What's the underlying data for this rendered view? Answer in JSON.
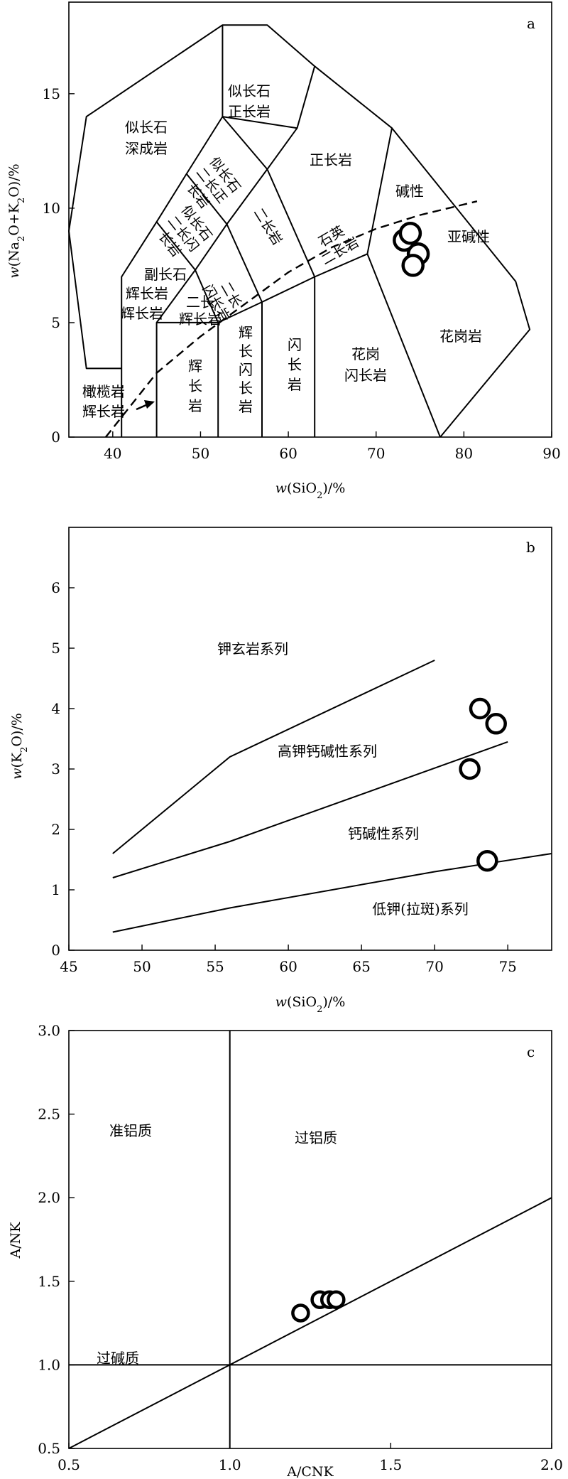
{
  "chart_data": [
    {
      "type": "scatter",
      "panel_label": "a",
      "xlabel": "w(SiO2)/%",
      "ylabel": "w(Na2O+K2O)/%",
      "xlim": [
        35,
        90
      ],
      "ylim": [
        0,
        19
      ],
      "x_ticks": [
        40,
        50,
        60,
        70,
        80,
        90
      ],
      "y_ticks": [
        0,
        5,
        10,
        15
      ],
      "field_labels": {
        "foid_syenite": [
          "似长石",
          "正长岩"
        ],
        "foidolite": [
          "似长石",
          "深成岩"
        ],
        "syenite": "正长岩",
        "alkaline": "碱性",
        "subalkaline": "亚碱性",
        "granite": "花岗岩",
        "foid_monzosyenite": [
          "似长石",
          "二长正",
          "长岩"
        ],
        "foid_monzodiorite": [
          "似长石",
          "二长闪",
          "长岩"
        ],
        "monzonite": "二长岩",
        "quartz_monzonite": [
          "石英",
          "二长岩"
        ],
        "foid_gabbro": [
          "副长石",
          "辉长岩"
        ],
        "monzogabbro": [
          "二长",
          "辉长岩"
        ],
        "monzodiorite": [
          "二长",
          "闪长岩"
        ],
        "gabbro": [
          "辉",
          "长",
          "岩"
        ],
        "gabbroic_diorite": [
          "辉",
          "长",
          "闪",
          "长",
          "岩"
        ],
        "diorite": [
          "闪",
          "长",
          "岩"
        ],
        "granodiorite": [
          "花岗",
          "闪长岩"
        ],
        "peridot_gabbro": [
          "橄榄岩",
          "辉长岩"
        ]
      },
      "boundary_lines": [
        [
          [
            41,
            0
          ],
          [
            41,
            7
          ],
          [
            45,
            9.4
          ],
          [
            48.4,
            11.5
          ],
          [
            52.5,
            14
          ],
          [
            52.5,
            18
          ],
          [
            57.6,
            18
          ],
          [
            63,
            16.2
          ],
          [
            71.8,
            13.5
          ]
        ],
        [
          [
            45,
            0
          ],
          [
            45,
            5
          ],
          [
            49.4,
            7.3
          ],
          [
            53,
            9.3
          ],
          [
            57.6,
            11.7
          ],
          [
            61,
            13.5
          ],
          [
            63,
            16.2
          ]
        ],
        [
          [
            45,
            5
          ],
          [
            52,
            5
          ],
          [
            57,
            5.9
          ],
          [
            63,
            7
          ],
          [
            69,
            8
          ],
          [
            71.8,
            13.5
          ],
          [
            85.9,
            6.8
          ],
          [
            87.5,
            4.7
          ],
          [
            77.3,
            0
          ]
        ],
        [
          [
            52,
            0
          ],
          [
            52,
            5
          ],
          [
            49.4,
            7.3
          ],
          [
            45,
            9.4
          ]
        ],
        [
          [
            57,
            0
          ],
          [
            57,
            5.9
          ],
          [
            53,
            9.3
          ],
          [
            48.4,
            11.5
          ]
        ],
        [
          [
            63,
            0
          ],
          [
            63,
            7
          ],
          [
            57.6,
            11.7
          ],
          [
            52.5,
            14
          ]
        ],
        [
          [
            69,
            8
          ],
          [
            77.3,
            0
          ]
        ],
        [
          [
            52.5,
            14
          ],
          [
            61,
            13.5
          ]
        ],
        [
          [
            41,
            3
          ],
          [
            37,
            3
          ],
          [
            35,
            9
          ],
          [
            37,
            14
          ],
          [
            52.5,
            18
          ]
        ]
      ],
      "alkaline_divide": [
        [
          39.2,
          0
        ],
        [
          45,
          2.8
        ],
        [
          50,
          4.4
        ],
        [
          55,
          5.8
        ],
        [
          60,
          7.2
        ],
        [
          65,
          8.3
        ],
        [
          70,
          9.1
        ],
        [
          75,
          9.7
        ],
        [
          81.5,
          10.3
        ]
      ],
      "points": [
        [
          73.2,
          8.6
        ],
        [
          73.9,
          8.9
        ],
        [
          74.8,
          8.0
        ],
        [
          74.2,
          7.5
        ]
      ]
    },
    {
      "type": "scatter",
      "panel_label": "b",
      "xlabel": "w(SiO2)/%",
      "ylabel": "w(K2O)/%",
      "xlim": [
        45,
        78
      ],
      "ylim": [
        0,
        7
      ],
      "x_ticks": [
        45,
        50,
        55,
        60,
        65,
        70,
        75
      ],
      "y_ticks": [
        0,
        1,
        2,
        3,
        4,
        5,
        6
      ],
      "series_labels": {
        "shoshonite": "钾玄岩系列",
        "high_k": "高钾钙碱性系列",
        "calc_alkaline": "钙碱性系列",
        "low_k": "低钾(拉斑)系列"
      },
      "boundary_lines": [
        [
          [
            48,
            1.6
          ],
          [
            56,
            3.2
          ],
          [
            70,
            4.8
          ]
        ],
        [
          [
            48,
            1.2
          ],
          [
            56,
            1.8
          ],
          [
            75,
            3.45
          ]
        ],
        [
          [
            48,
            0.3
          ],
          [
            56,
            0.7
          ],
          [
            70,
            1.3
          ],
          [
            78,
            1.6
          ]
        ]
      ],
      "points": [
        [
          73.1,
          4.0
        ],
        [
          74.2,
          3.75
        ],
        [
          72.4,
          3.0
        ],
        [
          73.6,
          1.48
        ]
      ]
    },
    {
      "type": "scatter",
      "panel_label": "c",
      "xlabel": "A/CNK",
      "ylabel": "A/NK",
      "xlim": [
        0.5,
        2.0
      ],
      "ylim": [
        0.5,
        3.0
      ],
      "x_ticks": [
        "0.5",
        "1.0",
        "1.5",
        "2.0"
      ],
      "y_ticks": [
        "0.5",
        "1.0",
        "1.5",
        "2.0",
        "2.5",
        "3.0"
      ],
      "field_labels": {
        "metaluminous": "准铝质",
        "peraluminous": "过铝质",
        "peralkaline": "过碱质"
      },
      "boundary_lines": [
        [
          [
            1.0,
            0.5
          ],
          [
            1.0,
            3.0
          ]
        ],
        [
          [
            0.5,
            1.0
          ],
          [
            2.0,
            1.0
          ]
        ],
        [
          [
            0.5,
            0.5
          ],
          [
            2.0,
            2.0
          ]
        ]
      ],
      "points": [
        [
          1.22,
          1.31
        ],
        [
          1.28,
          1.39
        ],
        [
          1.31,
          1.39
        ],
        [
          1.33,
          1.39
        ]
      ]
    }
  ]
}
